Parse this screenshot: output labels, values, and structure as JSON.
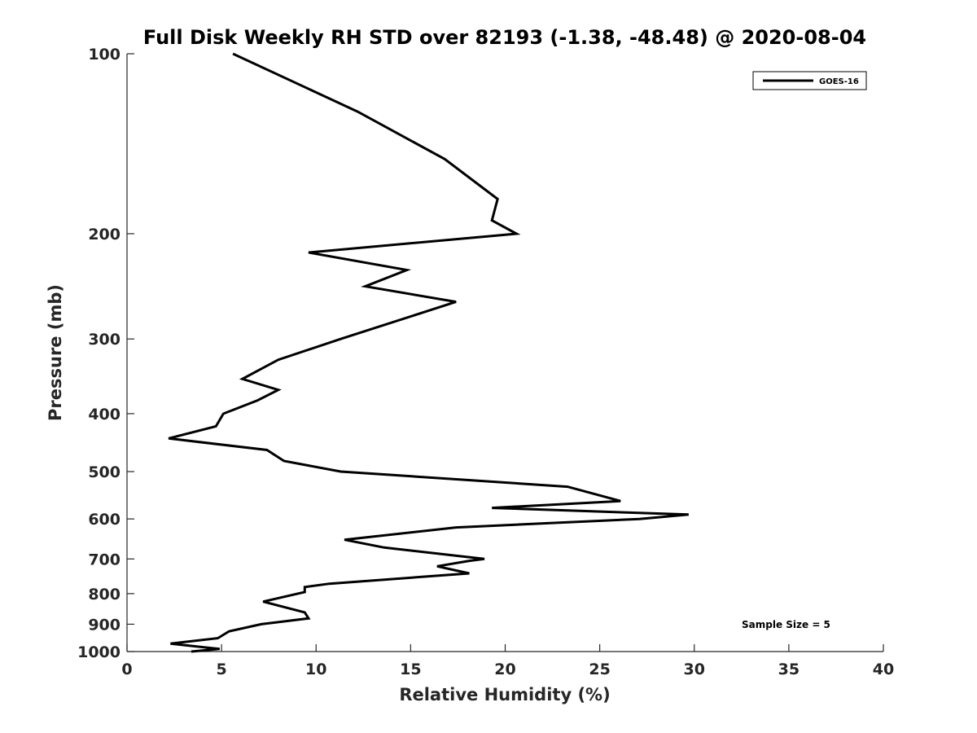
{
  "chart_data": {
    "type": "line",
    "title": "Full Disk Weekly RH STD over 82193 (-1.38, -48.48) @ 2020-08-04",
    "xlabel": "Relative Humidity (%)",
    "ylabel": "Pressure (mb)",
    "xlim": [
      0,
      40
    ],
    "ylim": [
      100,
      1000
    ],
    "yscale": "log",
    "yreversed": true,
    "grid": false,
    "xticks": [
      0,
      5,
      10,
      15,
      20,
      25,
      30,
      35,
      40
    ],
    "xtick_labels": [
      "0",
      "5",
      "10",
      "15",
      "20",
      "25",
      "30",
      "35",
      "40"
    ],
    "yticks": [
      100,
      200,
      300,
      400,
      500,
      600,
      700,
      800,
      900,
      1000
    ],
    "ytick_labels": [
      "100",
      "200",
      "300",
      "400",
      "500",
      "600",
      "700",
      "800",
      "900",
      "1000"
    ],
    "legend": {
      "position": "top-right",
      "entries": [
        "GOES-16"
      ]
    },
    "annotation": "Sample Size = 5",
    "series": [
      {
        "name": "GOES-16",
        "color": "#000000",
        "points": [
          [
            5.6,
            100
          ],
          [
            12.2,
            125
          ],
          [
            16.8,
            150
          ],
          [
            19.6,
            175
          ],
          [
            19.3,
            190
          ],
          [
            20.6,
            200
          ],
          [
            9.6,
            215
          ],
          [
            14.8,
            230
          ],
          [
            12.6,
            245
          ],
          [
            17.4,
            260
          ],
          [
            11.3,
            300
          ],
          [
            8.0,
            325
          ],
          [
            6.1,
            350
          ],
          [
            8.0,
            365
          ],
          [
            6.9,
            380
          ],
          [
            5.1,
            400
          ],
          [
            4.7,
            420
          ],
          [
            2.2,
            440
          ],
          [
            7.4,
            460
          ],
          [
            8.3,
            480
          ],
          [
            11.3,
            500
          ],
          [
            23.3,
            530
          ],
          [
            26.1,
            560
          ],
          [
            19.3,
            575
          ],
          [
            29.7,
            590
          ],
          [
            27.1,
            600
          ],
          [
            17.4,
            620
          ],
          [
            11.5,
            650
          ],
          [
            13.6,
            670
          ],
          [
            18.9,
            700
          ],
          [
            18.1,
            705
          ],
          [
            16.4,
            720
          ],
          [
            18.1,
            740
          ],
          [
            10.7,
            770
          ],
          [
            9.4,
            780
          ],
          [
            9.4,
            795
          ],
          [
            7.2,
            825
          ],
          [
            9.4,
            860
          ],
          [
            9.6,
            880
          ],
          [
            7.1,
            900
          ],
          [
            5.4,
            925
          ],
          [
            4.8,
            950
          ],
          [
            2.3,
            970
          ],
          [
            4.9,
            990
          ],
          [
            3.4,
            1000
          ]
        ]
      }
    ]
  }
}
